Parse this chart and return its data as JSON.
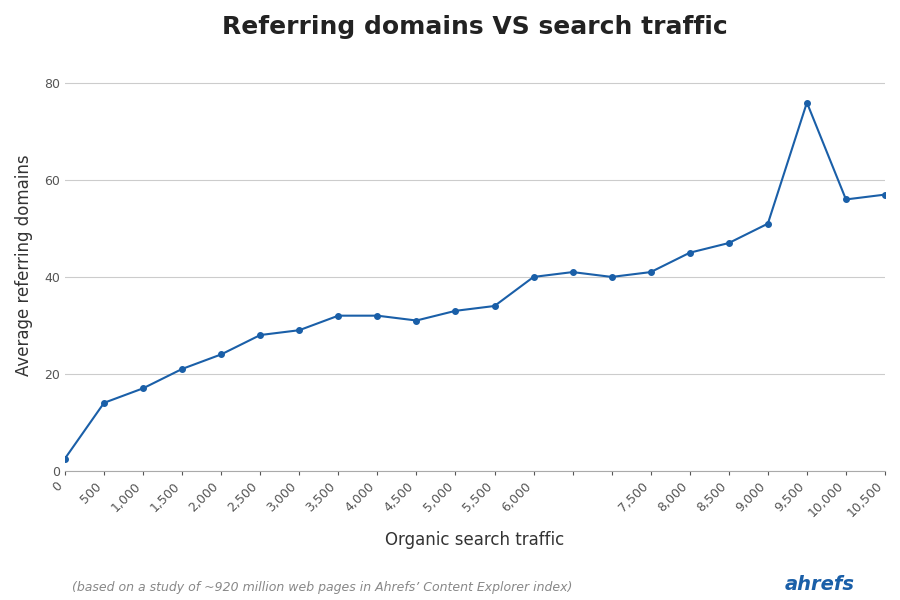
{
  "title": "Referring domains VS search traffic",
  "xlabel": "Organic search traffic",
  "ylabel": "Average referring domains",
  "footnote": "(based on a study of ~920 million web pages in Ahrefs’ Content Explorer index)",
  "watermark": "ahrefs",
  "line_color": "#1a5fa8",
  "background_color": "#ffffff",
  "x_data": [
    0,
    500,
    1000,
    1500,
    2000,
    2500,
    3000,
    3500,
    4000,
    4500,
    5000,
    5500,
    6000,
    6500,
    7000,
    7500,
    8000,
    8500,
    9000,
    9500,
    10000,
    10500
  ],
  "y_data": [
    2.5,
    14,
    17,
    21,
    24,
    28,
    29,
    32,
    32,
    31,
    33,
    34,
    40,
    41,
    40,
    41,
    45,
    47,
    51,
    76,
    56,
    57
  ],
  "xlim": [
    0,
    10500
  ],
  "ylim": [
    0,
    85
  ],
  "yticks": [
    0,
    20,
    40,
    60,
    80
  ],
  "xtick_positions": [
    0,
    500,
    1000,
    1500,
    2000,
    2500,
    3000,
    3500,
    4000,
    4500,
    5000,
    5500,
    6000,
    7500,
    8000,
    8500,
    9000,
    9500,
    10000,
    10500
  ],
  "xtick_labels": [
    "0",
    "500",
    "1,000",
    "1,500",
    "2,000",
    "2,500",
    "3,000",
    "3,500",
    "4,000",
    "4,500",
    "5,000",
    "5,500",
    "6,000",
    "7,500",
    "8,000",
    "8,500",
    "9,000",
    "9,500",
    "10,000",
    "10,500"
  ],
  "grid_color": "#cccccc",
  "title_fontsize": 18,
  "axis_label_fontsize": 12,
  "tick_fontsize": 9,
  "footnote_fontsize": 9,
  "watermark_fontsize": 14,
  "line_width": 1.5,
  "marker_size": 4
}
